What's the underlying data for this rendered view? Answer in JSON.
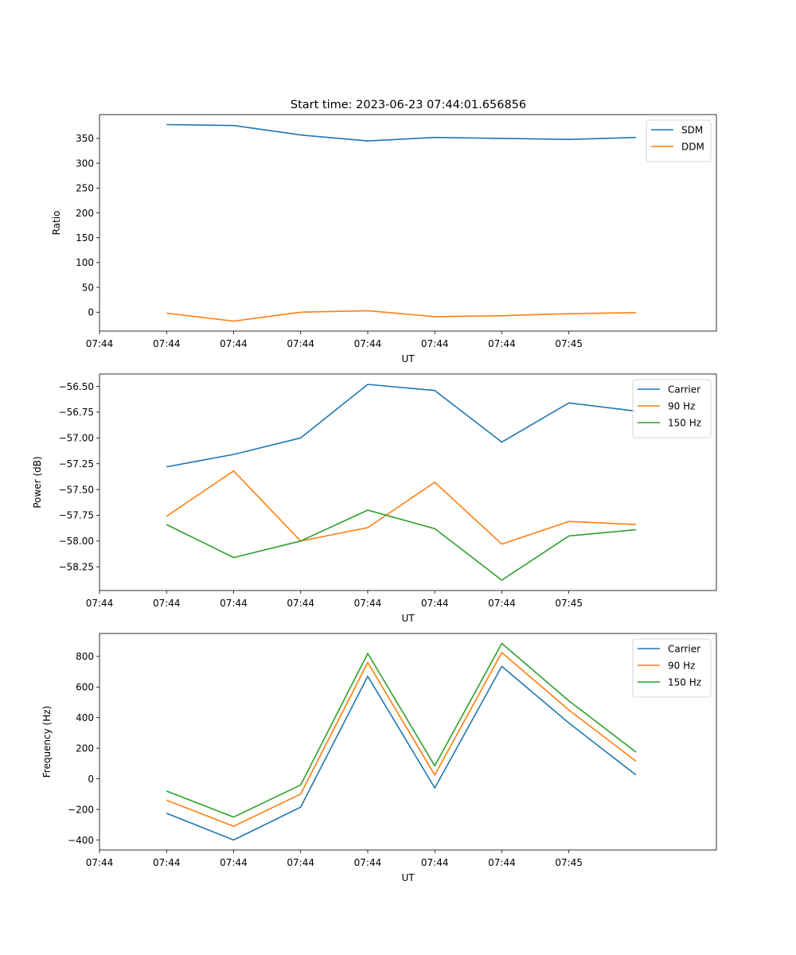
{
  "figure": {
    "title": "Start time: 2023-06-23 07:44:01.656856"
  },
  "chart_data": [
    {
      "type": "line",
      "xlabel": "UT",
      "ylabel": "Ratio",
      "x_ticks": [
        "07:44",
        "07:44",
        "07:44",
        "07:44",
        "07:44",
        "07:44",
        "07:44",
        "07:45"
      ],
      "x": [
        1,
        2,
        3,
        4,
        5,
        6,
        7,
        8
      ],
      "xlim": [
        0,
        9.2
      ],
      "ylim": [
        -38,
        398
      ],
      "y_ticks": [
        0,
        50,
        100,
        150,
        200,
        250,
        300,
        350
      ],
      "legend_position": "top-right",
      "series": [
        {
          "name": "SDM",
          "color": "#1f77b4",
          "values": [
            378,
            376,
            357,
            345,
            352,
            350,
            348,
            352
          ]
        },
        {
          "name": "DDM",
          "color": "#ff7f0e",
          "values": [
            -2,
            -18,
            0,
            3,
            -9,
            -7,
            -3,
            -1
          ]
        }
      ]
    },
    {
      "type": "line",
      "xlabel": "UT",
      "ylabel": "Power (dB)",
      "x_ticks": [
        "07:44",
        "07:44",
        "07:44",
        "07:44",
        "07:44",
        "07:44",
        "07:44",
        "07:45"
      ],
      "x": [
        1,
        2,
        3,
        4,
        5,
        6,
        7,
        8
      ],
      "xlim": [
        0,
        9.2
      ],
      "ylim": [
        -58.48,
        -56.38
      ],
      "y_ticks": [
        -56.5,
        -56.75,
        -57.0,
        -57.25,
        -57.5,
        -57.75,
        -58.0,
        -58.25
      ],
      "y_tick_labels": [
        "−56.50",
        "−56.75",
        "−57.00",
        "−57.25",
        "−57.50",
        "−57.75",
        "−58.00",
        "−58.25"
      ],
      "legend_position": "top-right",
      "series": [
        {
          "name": "Carrier",
          "color": "#1f77b4",
          "values": [
            -57.28,
            -57.16,
            -57.0,
            -56.48,
            -56.54,
            -57.04,
            -56.66,
            -56.74
          ]
        },
        {
          "name": "90 Hz",
          "color": "#ff7f0e",
          "values": [
            -57.76,
            -57.32,
            -58.0,
            -57.87,
            -57.43,
            -58.03,
            -57.81,
            -57.84
          ]
        },
        {
          "name": "150 Hz",
          "color": "#2ca02c",
          "values": [
            -57.84,
            -58.16,
            -58.0,
            -57.7,
            -57.88,
            -58.38,
            -57.95,
            -57.89
          ]
        }
      ]
    },
    {
      "type": "line",
      "xlabel": "UT",
      "ylabel": "Frequency (Hz)",
      "x_ticks": [
        "07:44",
        "07:44",
        "07:44",
        "07:44",
        "07:44",
        "07:44",
        "07:44",
        "07:45"
      ],
      "x": [
        1,
        2,
        3,
        4,
        5,
        6,
        7,
        8
      ],
      "xlim": [
        0,
        9.2
      ],
      "ylim": [
        -465,
        950
      ],
      "y_ticks": [
        -400,
        -200,
        0,
        200,
        400,
        600,
        800
      ],
      "y_tick_labels": [
        "−400",
        "−200",
        "0",
        "200",
        "400",
        "600",
        "800"
      ],
      "legend_position": "top-right",
      "series": [
        {
          "name": "Carrier",
          "color": "#1f77b4",
          "values": [
            -225,
            -400,
            -185,
            670,
            -60,
            735,
            365,
            25
          ]
        },
        {
          "name": "90 Hz",
          "color": "#ff7f0e",
          "values": [
            -140,
            -310,
            -100,
            760,
            25,
            825,
            450,
            115
          ]
        },
        {
          "name": "150 Hz",
          "color": "#2ca02c",
          "values": [
            -80,
            -250,
            -40,
            820,
            85,
            885,
            510,
            175
          ]
        }
      ]
    }
  ]
}
